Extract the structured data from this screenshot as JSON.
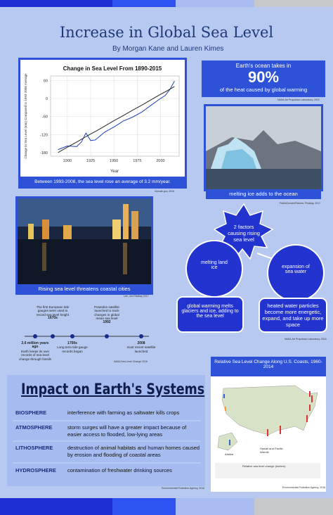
{
  "header": {
    "title": "Increase in Global Sea Level",
    "authors": "By Morgan Kane and Lauren Kimes"
  },
  "chart_data": {
    "type": "line",
    "title": "Change in Sea Level From 1890-2015",
    "x_label": "Year",
    "y_label": "Change in Sea Level (mm) Compared to 1993-2008 Average",
    "x": [
      1890,
      1900,
      1910,
      1915,
      1920,
      1925,
      1930,
      1935,
      1940,
      1950,
      1960,
      1970,
      1980,
      1990,
      2000,
      2005,
      2010,
      2015
    ],
    "series": [
      {
        "color": "#1f3fbf",
        "values": [
          -170,
          -158,
          -160,
          -145,
          -115,
          -140,
          -138,
          -125,
          -112,
          -95,
          -75,
          -62,
          -45,
          -22,
          0,
          10,
          30,
          58
        ]
      },
      {
        "color": "#222222",
        "values": [
          -180,
          -162,
          -145,
          -136,
          -127,
          -118,
          -110,
          -101,
          -92,
          -74,
          -57,
          -39,
          -22,
          -4,
          14,
          22,
          31,
          40
        ]
      }
    ],
    "xlim": [
      1882,
      2020
    ],
    "ylim": [
      -192,
      75
    ],
    "xticks": [
      1900,
      1925,
      1950,
      1975,
      2000
    ],
    "yticks": [
      -180,
      -120,
      -60,
      0,
      60
    ],
    "caption": "Between 1993-2008, the sea level rose an average of 3.2 mm/year.",
    "source": "Climate.gov, 2016"
  },
  "fact": {
    "intro": "Earth's ocean  takes in",
    "big": "90%",
    "rest": "of the heat caused by global warming",
    "source": "NASA Jet Propulsion Laboratory, 2015"
  },
  "glacier": {
    "caption": "melting ice adds to the ocean",
    "source": "PublicDomainPictures, Pixabay, 2017"
  },
  "city": {
    "caption": "Rising sea level threatens coastal cities",
    "source": "Lee, Jon Pixabay 2017"
  },
  "factors": {
    "title": "2 factors causing rising sea level",
    "left": "melting land ice",
    "right": "expansion of sea water",
    "left_text": "global warming  melts glaciers and ice, adding to the sea level",
    "right_text": "heated water particles become more energetic, expand, and take up more space",
    "source": "NASA Jet Propulsion Laboratory, 2016"
  },
  "timeline": {
    "events": [
      {
        "date": "2.6 million years ago",
        "text": "Earth keeps its own records of sea level change through fossils"
      },
      {
        "date": "1670s",
        "text": "The first European tide gauges were used to record sea level height"
      },
      {
        "date": "1700s",
        "text": "Long term tide gauge records began"
      },
      {
        "date": "1992",
        "text": "Poseidon satellite launched to track changes in global mean sea level"
      },
      {
        "date": "2008",
        "text": "most recent satellite launched"
      }
    ],
    "source": "NASA Sea Level Change 2016"
  },
  "impact": {
    "title": "Impact on Earth's Systems",
    "rows": [
      [
        "BIOSPHERE",
        "interference with farming as saltwater kills crops"
      ],
      [
        "ATMOSPHERE",
        "storm surges will have a greater impact because of easier access to flooded, low-lying areas"
      ],
      [
        "LITHOSPHERE",
        "destruction of animal habitats and human homes caused by erosion and flooding of coastal areas"
      ],
      [
        "HYDROSPHERE",
        "contamination of freshwater drinking sources"
      ]
    ],
    "source": "Environmental Protection Agency, 2016"
  },
  "map": {
    "title": "Relative Sea Level Change Along U.S. Coasts, 1960-2014",
    "alaska": "Alaska",
    "hawaii": "Hawaii and Pacific Islands",
    "legend": "Relative sea level change (inches):",
    "source": "Environmental Protection Agency, 2016"
  }
}
